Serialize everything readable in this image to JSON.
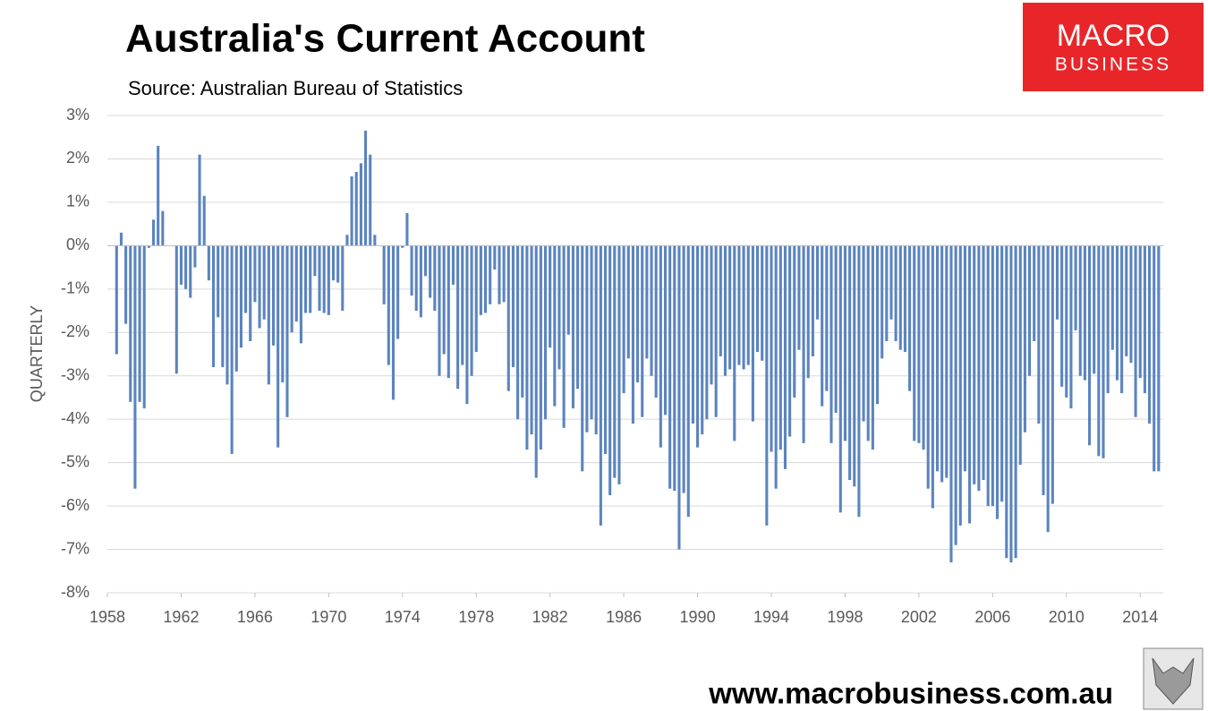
{
  "chart_data": {
    "type": "bar",
    "title": "Australia's Current Account",
    "subtitle": "Source: Australian Bureau of Statistics",
    "y_label": "QUARTERLY",
    "logo_top": "MACRO",
    "logo_bottom": "BUSINESS",
    "footer": "www.macrobusiness.com.au",
    "color": "#5b84bf",
    "grid": true,
    "xlim": [
      1958,
      2015.25
    ],
    "xticks": [
      1958,
      1962,
      1966,
      1970,
      1974,
      1978,
      1982,
      1986,
      1990,
      1994,
      1998,
      2002,
      2006,
      2010,
      2014
    ],
    "ylim": [
      -8,
      3
    ],
    "yticks": [
      {
        "value": 3,
        "label": "3%"
      },
      {
        "value": 2,
        "label": "2%"
      },
      {
        "value": 1,
        "label": "1%"
      },
      {
        "value": 0,
        "label": "0%"
      },
      {
        "value": -1,
        "label": "-1%"
      },
      {
        "value": -2,
        "label": "-2%"
      },
      {
        "value": -3,
        "label": "-3%"
      },
      {
        "value": -4,
        "label": "-4%"
      },
      {
        "value": -5,
        "label": "-5%"
      },
      {
        "value": -6,
        "label": "-6%"
      },
      {
        "value": -7,
        "label": "-7%"
      },
      {
        "value": -8,
        "label": "-8%"
      }
    ],
    "x": [
      1958.5,
      1958.75,
      1959,
      1959.25,
      1959.5,
      1959.75,
      1960,
      1960.25,
      1960.5,
      1960.75,
      1961,
      1961.25,
      1961.5,
      1961.75,
      1962,
      1962.25,
      1962.5,
      1962.75,
      1963,
      1963.25,
      1963.5,
      1963.75,
      1964,
      1964.25,
      1964.5,
      1964.75,
      1965,
      1965.25,
      1965.5,
      1965.75,
      1966,
      1966.25,
      1966.5,
      1966.75,
      1967,
      1967.25,
      1967.5,
      1967.75,
      1968,
      1968.25,
      1968.5,
      1968.75,
      1969,
      1969.25,
      1969.5,
      1969.75,
      1970,
      1970.25,
      1970.5,
      1970.75,
      1971,
      1971.25,
      1971.5,
      1971.75,
      1972,
      1972.25,
      1972.5,
      1972.75,
      1973,
      1973.25,
      1973.5,
      1973.75,
      1974,
      1974.25,
      1974.5,
      1974.75,
      1975,
      1975.25,
      1975.5,
      1975.75,
      1976,
      1976.25,
      1976.5,
      1976.75,
      1977,
      1977.25,
      1977.5,
      1977.75,
      1978,
      1978.25,
      1978.5,
      1978.75,
      1979,
      1979.25,
      1979.5,
      1979.75,
      1980,
      1980.25,
      1980.5,
      1980.75,
      1981,
      1981.25,
      1981.5,
      1981.75,
      1982,
      1982.25,
      1982.5,
      1982.75,
      1983,
      1983.25,
      1983.5,
      1983.75,
      1984,
      1984.25,
      1984.5,
      1984.75,
      1985,
      1985.25,
      1985.5,
      1985.75,
      1986,
      1986.25,
      1986.5,
      1986.75,
      1987,
      1987.25,
      1987.5,
      1987.75,
      1988,
      1988.25,
      1988.5,
      1988.75,
      1989,
      1989.25,
      1989.5,
      1989.75,
      1990,
      1990.25,
      1990.5,
      1990.75,
      1991,
      1991.25,
      1991.5,
      1991.75,
      1992,
      1992.25,
      1992.5,
      1992.75,
      1993,
      1993.25,
      1993.5,
      1993.75,
      1994,
      1994.25,
      1994.5,
      1994.75,
      1995,
      1995.25,
      1995.5,
      1995.75,
      1996,
      1996.25,
      1996.5,
      1996.75,
      1997,
      1997.25,
      1997.5,
      1997.75,
      1998,
      1998.25,
      1998.5,
      1998.75,
      1999,
      1999.25,
      1999.5,
      1999.75,
      2000,
      2000.25,
      2000.5,
      2000.75,
      2001,
      2001.25,
      2001.5,
      2001.75,
      2002,
      2002.25,
      2002.5,
      2002.75,
      2003,
      2003.25,
      2003.5,
      2003.75,
      2004,
      2004.25,
      2004.5,
      2004.75,
      2005,
      2005.25,
      2005.5,
      2005.75,
      2006,
      2006.25,
      2006.5,
      2006.75,
      2007,
      2007.25,
      2007.5,
      2007.75,
      2008,
      2008.25,
      2008.5,
      2008.75,
      2009,
      2009.25,
      2009.5,
      2009.75,
      2010,
      2010.25,
      2010.5,
      2010.75,
      2011,
      2011.25,
      2011.5,
      2011.75,
      2012,
      2012.25,
      2012.5,
      2012.75,
      2013,
      2013.25,
      2013.5,
      2013.75,
      2014,
      2014.25,
      2014.5,
      2014.75,
      2015
    ],
    "values": [
      -2.5,
      0.3,
      -1.8,
      -3.6,
      -5.6,
      -3.6,
      -3.75,
      -0.05,
      0.6,
      2.3,
      0.8,
      0,
      0,
      -2.95,
      -0.9,
      -1.0,
      -1.2,
      -0.5,
      2.1,
      1.15,
      -0.8,
      -2.8,
      -1.65,
      -2.8,
      -3.2,
      -4.8,
      -2.9,
      -2.35,
      -1.55,
      -2.2,
      -1.3,
      -1.9,
      -1.7,
      -3.2,
      -2.3,
      -4.65,
      -3.15,
      -3.95,
      -2.0,
      -1.75,
      -2.25,
      -1.55,
      -1.55,
      -0.7,
      -1.5,
      -1.55,
      -1.6,
      -0.8,
      -0.85,
      -1.5,
      0.25,
      1.6,
      1.7,
      1.9,
      2.65,
      2.1,
      0.25,
      0,
      -1.35,
      -2.75,
      -3.55,
      -2.15,
      -0.05,
      0.75,
      -1.15,
      -1.5,
      -1.65,
      -0.7,
      -1.2,
      -1.5,
      -3.0,
      -2.5,
      -3.05,
      -0.9,
      -3.3,
      -2.75,
      -3.65,
      -3.0,
      -2.45,
      -1.6,
      -1.55,
      -1.35,
      -0.55,
      -1.35,
      -1.3,
      -3.35,
      -2.8,
      -4.0,
      -3.5,
      -4.7,
      -4.35,
      -5.35,
      -4.7,
      -4.0,
      -2.35,
      -3.7,
      -2.85,
      -4.2,
      -2.05,
      -3.75,
      -3.3,
      -5.2,
      -4.3,
      -4.0,
      -4.35,
      -6.45,
      -4.8,
      -5.75,
      -5.35,
      -5.5,
      -3.4,
      -2.6,
      -4.1,
      -3.15,
      -3.95,
      -2.6,
      -3.0,
      -3.5,
      -4.65,
      -3.9,
      -5.6,
      -5.65,
      -7.0,
      -5.7,
      -6.25,
      -4.1,
      -4.65,
      -4.35,
      -4.0,
      -3.2,
      -3.95,
      -2.55,
      -3.0,
      -2.85,
      -4.5,
      -2.75,
      -2.85,
      -2.75,
      -4.05,
      -2.45,
      -2.65,
      -6.45,
      -4.75,
      -5.6,
      -4.7,
      -5.15,
      -4.4,
      -3.5,
      -2.4,
      -4.55,
      -3.05,
      -2.55,
      -1.7,
      -3.7,
      -3.35,
      -4.55,
      -3.85,
      -6.15,
      -4.5,
      -5.4,
      -5.55,
      -6.25,
      -4.05,
      -4.5,
      -4.7,
      -3.65,
      -2.6,
      -2.2,
      -1.7,
      -2.2,
      -2.4,
      -2.45,
      -3.35,
      -4.5,
      -4.55,
      -4.7,
      -5.6,
      -6.05,
      -5.2,
      -5.45,
      -5.35,
      -7.3,
      -6.9,
      -6.45,
      -5.2,
      -6.4,
      -5.5,
      -5.65,
      -5.4,
      -6.0,
      -6.0,
      -6.3,
      -5.9,
      -7.2,
      -7.3,
      -7.2,
      -5.05,
      -4.3,
      -3.0,
      -2.2,
      -4.1,
      -5.75,
      -6.6,
      -5.95,
      -1.7,
      -3.25,
      -3.5,
      -3.75,
      -1.95,
      -3.0,
      -3.1,
      -4.6,
      -2.95,
      -4.85,
      -4.9,
      -3.4,
      -2.4,
      -3.1,
      -3.4,
      -2.55,
      -2.7,
      -3.95,
      -3.05,
      -3.4,
      -4.1,
      -5.2,
      -5.2
    ]
  }
}
